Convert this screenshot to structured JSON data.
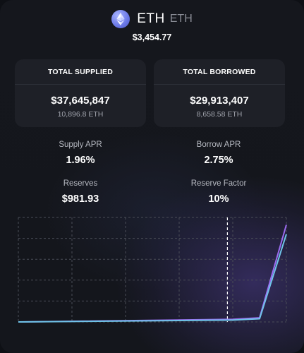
{
  "token": {
    "symbol": "ETH",
    "subtitle": "ETH",
    "price": "$3,454.77",
    "logo_icon": "ethereum-icon"
  },
  "stats": {
    "supplied": {
      "title": "TOTAL SUPPLIED",
      "value": "$37,645,847",
      "sub": "10,896.8 ETH"
    },
    "borrowed": {
      "title": "TOTAL BORROWED",
      "value": "$29,913,407",
      "sub": "8,658.58 ETH"
    }
  },
  "metrics": {
    "supply_apr": {
      "label": "Supply APR",
      "value": "1.96%"
    },
    "borrow_apr": {
      "label": "Borrow APR",
      "value": "2.75%"
    },
    "reserves": {
      "label": "Reserves",
      "value": "$981.93"
    },
    "reserve_factor": {
      "label": "Reserve Factor",
      "value": "10%"
    }
  },
  "colors": {
    "supply_line": "#6fc3e8",
    "borrow_line": "#9b6cf0",
    "grid": "#4a4d57",
    "current_marker": "#ffffff"
  },
  "chart_data": {
    "type": "line",
    "x": [
      0,
      0.8,
      0.9,
      1.0
    ],
    "current_x": 0.78,
    "grid": true,
    "series": [
      {
        "values": [
          0,
          0.025,
          0.04,
          0.93
        ]
      },
      {
        "values": [
          0,
          0.018,
          0.03,
          0.84
        ]
      }
    ],
    "xlim": [
      0,
      1
    ],
    "ylim": [
      0,
      1
    ]
  }
}
